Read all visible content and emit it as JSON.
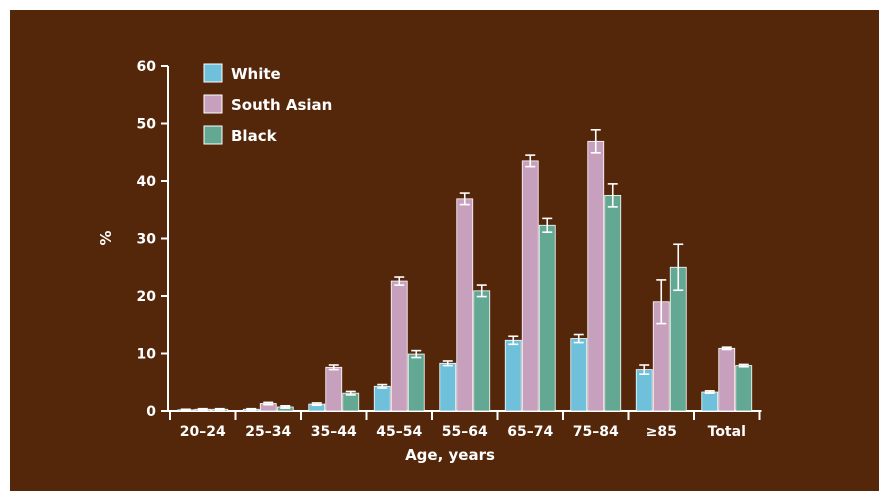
{
  "colors": {
    "background": "#54260A",
    "axis": "#FFFFFF",
    "white": "#6FC0DA",
    "south_asian": "#C7A0BD",
    "black": "#62A893",
    "error_bar": "#FFFFFF"
  },
  "chart_data": {
    "type": "bar",
    "title": "",
    "xlabel": "Age, years",
    "ylabel": "%",
    "ylim": [
      0,
      60
    ],
    "yticks": [
      "0",
      "10",
      "20",
      "30",
      "40",
      "50",
      "60"
    ],
    "grid": false,
    "legend_position": "top-left",
    "categories": [
      "20–24",
      "25–34",
      "35–44",
      "45–54",
      "55–64",
      "65–74",
      "75–84",
      "≥85",
      "Total"
    ],
    "series": [
      {
        "name": "White",
        "color_key": "white",
        "values": [
          0.2,
          0.3,
          1.2,
          4.3,
          8.3,
          12.3,
          12.6,
          7.2,
          3.3
        ],
        "err_low": [
          0.1,
          0.1,
          0.2,
          0.3,
          0.4,
          0.7,
          0.7,
          0.8,
          0.2
        ],
        "err_high": [
          0.1,
          0.1,
          0.2,
          0.3,
          0.4,
          0.7,
          0.7,
          0.8,
          0.2
        ]
      },
      {
        "name": "South Asian",
        "color_key": "south_asian",
        "values": [
          0.3,
          1.3,
          7.6,
          22.6,
          36.9,
          43.5,
          46.9,
          19.0,
          10.9
        ],
        "err_low": [
          0.1,
          0.2,
          0.4,
          0.7,
          1.0,
          1.0,
          2.0,
          3.8,
          0.2
        ],
        "err_high": [
          0.1,
          0.2,
          0.4,
          0.7,
          1.0,
          1.0,
          2.0,
          3.8,
          0.2
        ]
      },
      {
        "name": "Black",
        "color_key": "black",
        "values": [
          0.3,
          0.7,
          3.1,
          9.9,
          20.9,
          32.3,
          37.5,
          25.0,
          7.9
        ],
        "err_low": [
          0.1,
          0.2,
          0.3,
          0.6,
          1.0,
          1.2,
          2.0,
          4.0,
          0.2
        ],
        "err_high": [
          0.1,
          0.2,
          0.3,
          0.6,
          1.0,
          1.2,
          2.0,
          4.0,
          0.2
        ]
      }
    ]
  }
}
